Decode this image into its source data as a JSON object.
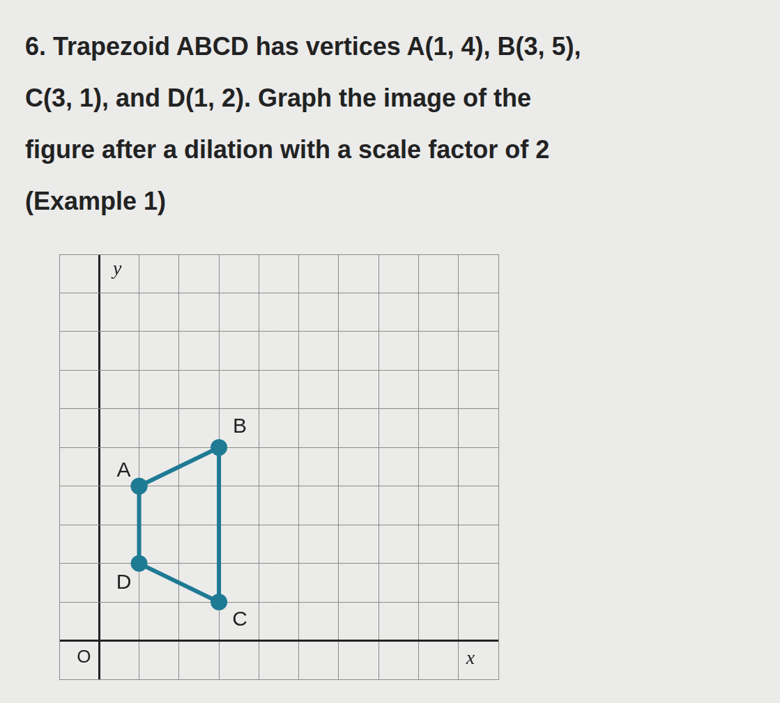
{
  "problem": {
    "lines": [
      "6. Trapezoid ABCD has vertices A(1, 4), B(3, 5),",
      "C(3, 1), and D(1, 2). Graph the image of the",
      "figure after a dilation with a scale factor of 2",
      "(Example 1)"
    ]
  },
  "chart_data": {
    "type": "line",
    "x_label": "x",
    "y_label": "y",
    "origin_label": "O",
    "points": [
      {
        "label": "A",
        "x": 1,
        "y": 4
      },
      {
        "label": "B",
        "x": 3,
        "y": 5
      },
      {
        "label": "C",
        "x": 3,
        "y": 1
      },
      {
        "label": "D",
        "x": 1,
        "y": 2
      }
    ],
    "color": "#1f7a94",
    "marker": "circle",
    "xlim": [
      -1,
      10
    ],
    "ylim": [
      -1,
      10
    ],
    "xticks": [
      -1,
      0,
      1,
      2,
      3,
      4,
      5,
      6,
      7,
      8,
      9,
      10
    ],
    "yticks": [
      -1,
      0,
      1,
      2,
      3,
      4,
      5,
      6,
      7,
      8,
      9,
      10
    ],
    "grid": true,
    "tick_labels": false
  }
}
